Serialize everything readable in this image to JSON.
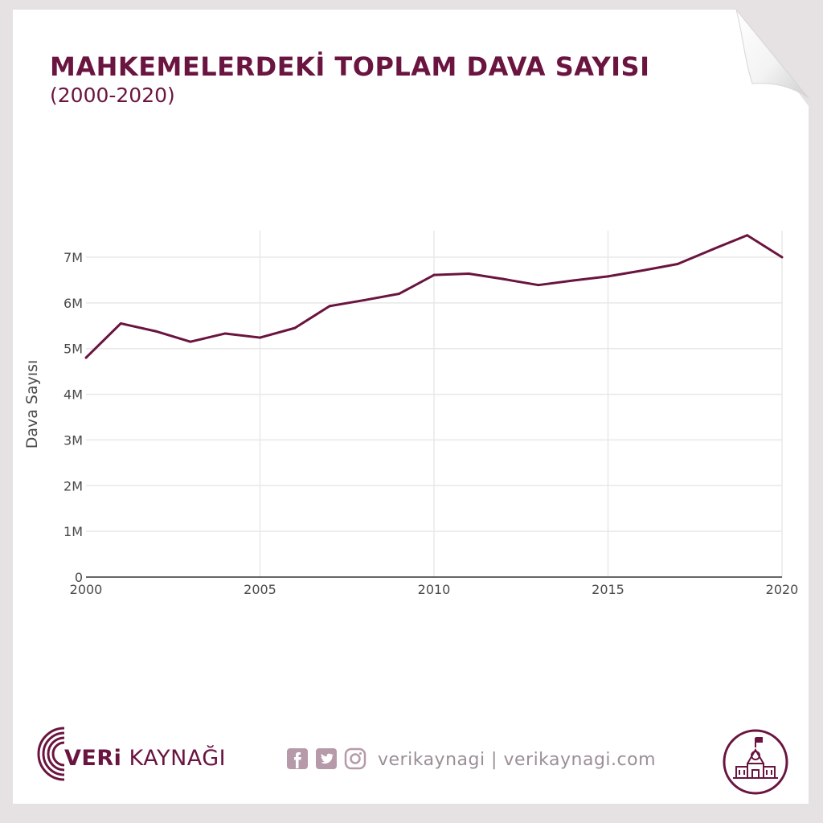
{
  "header": {
    "title": "MAHKEMELERDEKİ TOPLAM DAVA SAYISI",
    "subtitle": "(2000-2020)"
  },
  "colors": {
    "line": "#6a1440",
    "brand": "#6a1440",
    "grid": "#e8e8e8",
    "muted": "#9b8f96"
  },
  "footer": {
    "brand_bold": "VERi",
    "brand_rest": " KAYNAĞI",
    "social_handles": "verikaynagi | verikaynagi.com",
    "icons": [
      "facebook-icon",
      "twitter-icon",
      "instagram-icon",
      "school-building-icon"
    ]
  },
  "chart_data": {
    "type": "line",
    "title": "MAHKEMELERDEKİ TOPLAM DAVA SAYISI",
    "subtitle": "(2000-2020)",
    "xlabel": "",
    "ylabel": "Dava Sayısı",
    "x": [
      2000,
      2001,
      2002,
      2003,
      2004,
      2005,
      2006,
      2007,
      2008,
      2009,
      2010,
      2011,
      2012,
      2013,
      2014,
      2015,
      2016,
      2017,
      2018,
      2019,
      2020
    ],
    "series": [
      {
        "values": [
          4800000,
          5550000,
          5380000,
          5150000,
          5330000,
          5240000,
          5450000,
          5930000,
          6060000,
          6200000,
          6610000,
          6640000,
          6520000,
          6390000,
          6490000,
          6580000,
          6710000,
          6850000,
          7170000,
          7480000,
          7000000
        ]
      }
    ],
    "xlim": [
      2000,
      2020
    ],
    "ylim": [
      0,
      7000000
    ],
    "x_ticks": [
      "2000",
      "2005",
      "2010",
      "2015",
      "2020"
    ],
    "x_tick_values": [
      2000,
      2005,
      2010,
      2015,
      2020
    ],
    "y_ticks": [
      "0",
      "1M",
      "2M",
      "3M",
      "4M",
      "5M",
      "6M",
      "7M"
    ],
    "y_tick_values": [
      0,
      1000000,
      2000000,
      3000000,
      4000000,
      5000000,
      6000000,
      7000000
    ],
    "grid": true,
    "legend": "none"
  }
}
